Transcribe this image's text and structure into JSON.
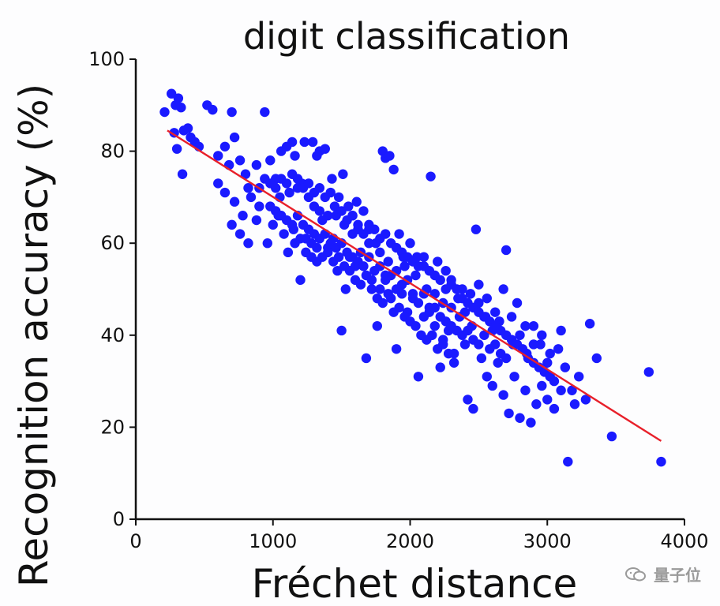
{
  "chart_data": {
    "type": "scatter",
    "title": "digit classification",
    "xlabel": "Fréchet distance",
    "ylabel": "Recognition accuracy (%)",
    "xlim": [
      0,
      4000
    ],
    "ylim": [
      0,
      100
    ],
    "x_ticks": [
      0,
      1000,
      2000,
      3000,
      4000
    ],
    "y_ticks": [
      0,
      20,
      40,
      60,
      80,
      100
    ],
    "grid": false,
    "colors": {
      "points": "#1a1aff",
      "fit_line": "#e8202a",
      "axes": "#111111"
    },
    "series": [
      {
        "type": "scatter",
        "points": [
          [
            210,
            88.5
          ],
          [
            260,
            92.5
          ],
          [
            290,
            90
          ],
          [
            310,
            91.5
          ],
          [
            330,
            89.5
          ],
          [
            350,
            84.5
          ],
          [
            280,
            84
          ],
          [
            300,
            80.5
          ],
          [
            340,
            75
          ],
          [
            380,
            85
          ],
          [
            400,
            83
          ],
          [
            430,
            82
          ],
          [
            460,
            81
          ],
          [
            520,
            90
          ],
          [
            560,
            89
          ],
          [
            600,
            79
          ],
          [
            650,
            81
          ],
          [
            680,
            77
          ],
          [
            700,
            88.5
          ],
          [
            720,
            83
          ],
          [
            760,
            78
          ],
          [
            800,
            75
          ],
          [
            820,
            72
          ],
          [
            880,
            77
          ],
          [
            940,
            88.5
          ],
          [
            980,
            78
          ],
          [
            1020,
            74
          ],
          [
            1060,
            80
          ],
          [
            1100,
            81
          ],
          [
            1140,
            82
          ],
          [
            1160,
            79
          ],
          [
            1210,
            73
          ],
          [
            1230,
            82
          ],
          [
            1290,
            82
          ],
          [
            1320,
            79
          ],
          [
            1340,
            80
          ],
          [
            1380,
            80.5
          ],
          [
            1430,
            74
          ],
          [
            1480,
            70
          ],
          [
            1510,
            75
          ],
          [
            1550,
            68
          ],
          [
            1580,
            62
          ],
          [
            1610,
            69
          ],
          [
            1660,
            67
          ],
          [
            1700,
            63
          ],
          [
            1750,
            60
          ],
          [
            1800,
            80
          ],
          [
            1820,
            78.5
          ],
          [
            1850,
            79
          ],
          [
            1880,
            76
          ],
          [
            1920,
            62
          ],
          [
            1950,
            57
          ],
          [
            2000,
            60
          ],
          [
            2050,
            57
          ],
          [
            2100,
            55
          ],
          [
            2150,
            74.5
          ],
          [
            2200,
            56
          ],
          [
            2260,
            50
          ],
          [
            2300,
            52
          ],
          [
            2350,
            48
          ],
          [
            2400,
            45
          ],
          [
            2450,
            42
          ],
          [
            2480,
            63
          ],
          [
            2500,
            47
          ],
          [
            2550,
            44
          ],
          [
            2600,
            41
          ],
          [
            2650,
            43
          ],
          [
            2700,
            58.5
          ],
          [
            2750,
            38
          ],
          [
            2800,
            40
          ],
          [
            2850,
            36
          ],
          [
            2900,
            42
          ],
          [
            2950,
            38
          ],
          [
            3000,
            34
          ],
          [
            3050,
            30
          ],
          [
            3100,
            41
          ],
          [
            3130,
            33
          ],
          [
            3150,
            12.5
          ],
          [
            3180,
            28
          ],
          [
            3230,
            31
          ],
          [
            3280,
            26
          ],
          [
            3310,
            42.5
          ],
          [
            3360,
            35
          ],
          [
            3470,
            18
          ],
          [
            3740,
            32
          ],
          [
            3830,
            12.5
          ],
          [
            600,
            73
          ],
          [
            650,
            71
          ],
          [
            720,
            69
          ],
          [
            780,
            66
          ],
          [
            840,
            70
          ],
          [
            900,
            68
          ],
          [
            960,
            60
          ],
          [
            1000,
            64
          ],
          [
            1040,
            66
          ],
          [
            1080,
            62
          ],
          [
            1110,
            58
          ],
          [
            1150,
            63
          ],
          [
            1200,
            52
          ],
          [
            1240,
            61
          ],
          [
            1280,
            57
          ],
          [
            1320,
            56
          ],
          [
            1360,
            65
          ],
          [
            1400,
            59
          ],
          [
            1440,
            61
          ],
          [
            1470,
            54
          ],
          [
            1500,
            41
          ],
          [
            1530,
            50
          ],
          [
            1560,
            57
          ],
          [
            1600,
            55
          ],
          [
            1640,
            58
          ],
          [
            1680,
            35
          ],
          [
            1720,
            52
          ],
          [
            1760,
            42
          ],
          [
            1780,
            50
          ],
          [
            1820,
            53
          ],
          [
            1860,
            48
          ],
          [
            1900,
            37
          ],
          [
            1940,
            51
          ],
          [
            1980,
            45
          ],
          [
            2020,
            49
          ],
          [
            2060,
            31
          ],
          [
            2100,
            44
          ],
          [
            2140,
            46
          ],
          [
            2180,
            42
          ],
          [
            2220,
            33
          ],
          [
            2240,
            39
          ],
          [
            2280,
            41
          ],
          [
            2320,
            36
          ],
          [
            2360,
            44
          ],
          [
            2400,
            38
          ],
          [
            2420,
            26
          ],
          [
            2460,
            24
          ],
          [
            2520,
            35
          ],
          [
            2560,
            31
          ],
          [
            2600,
            29
          ],
          [
            2640,
            34
          ],
          [
            2680,
            27
          ],
          [
            2720,
            23
          ],
          [
            2760,
            31
          ],
          [
            2800,
            22
          ],
          [
            2840,
            28
          ],
          [
            2880,
            21
          ],
          [
            2920,
            25
          ],
          [
            2960,
            29
          ],
          [
            3000,
            26
          ],
          [
            3050,
            24
          ],
          [
            3100,
            28
          ],
          [
            3200,
            25
          ],
          [
            700,
            64
          ],
          [
            760,
            62
          ],
          [
            820,
            60
          ],
          [
            880,
            65
          ],
          [
            1050,
            70
          ],
          [
            1120,
            71
          ],
          [
            1180,
            72
          ],
          [
            1260,
            70
          ],
          [
            1300,
            68
          ],
          [
            1340,
            67
          ],
          [
            1400,
            66
          ],
          [
            1450,
            68
          ],
          [
            1520,
            64
          ],
          [
            1580,
            66
          ],
          [
            1620,
            63
          ],
          [
            1700,
            60
          ],
          [
            1780,
            58
          ],
          [
            1840,
            56
          ],
          [
            1900,
            54
          ],
          [
            1960,
            55
          ],
          [
            2040,
            53
          ],
          [
            2120,
            50
          ],
          [
            2180,
            49
          ],
          [
            2240,
            47
          ],
          [
            2300,
            46
          ],
          [
            2380,
            50
          ],
          [
            2440,
            49
          ],
          [
            2500,
            51
          ],
          [
            2560,
            48
          ],
          [
            2620,
            45
          ],
          [
            2680,
            50
          ],
          [
            2740,
            44
          ],
          [
            2780,
            47
          ],
          [
            2840,
            42
          ],
          [
            2900,
            38
          ],
          [
            2960,
            40
          ],
          [
            3020,
            36
          ],
          [
            3080,
            37
          ],
          [
            980,
            68
          ],
          [
            1020,
            67
          ],
          [
            1060,
            66
          ],
          [
            1100,
            65
          ],
          [
            1140,
            64
          ],
          [
            1180,
            66
          ],
          [
            1220,
            64
          ],
          [
            1260,
            63
          ],
          [
            1300,
            62
          ],
          [
            1340,
            61
          ],
          [
            1380,
            62
          ],
          [
            1420,
            60
          ],
          [
            1460,
            59
          ],
          [
            1500,
            60
          ],
          [
            1540,
            58
          ],
          [
            1580,
            57
          ],
          [
            1620,
            56
          ],
          [
            1660,
            55
          ],
          [
            1700,
            57
          ],
          [
            1740,
            54
          ],
          [
            1780,
            55
          ],
          [
            1820,
            52
          ],
          [
            1860,
            53
          ],
          [
            1900,
            50
          ],
          [
            1940,
            49
          ],
          [
            1980,
            52
          ],
          [
            2020,
            48
          ],
          [
            2060,
            47
          ],
          [
            2100,
            49
          ],
          [
            2140,
            45
          ],
          [
            2180,
            46
          ],
          [
            2220,
            44
          ],
          [
            2260,
            43
          ],
          [
            2300,
            42
          ],
          [
            2340,
            41
          ],
          [
            2380,
            40
          ],
          [
            2420,
            41
          ],
          [
            2460,
            39
          ],
          [
            2500,
            38
          ],
          [
            2540,
            40
          ],
          [
            2580,
            37
          ],
          [
            2620,
            38
          ],
          [
            2660,
            36
          ],
          [
            2700,
            35
          ],
          [
            1160,
            60
          ],
          [
            1200,
            61
          ],
          [
            1240,
            58
          ],
          [
            1280,
            60
          ],
          [
            1320,
            59
          ],
          [
            1360,
            57
          ],
          [
            1400,
            58
          ],
          [
            1440,
            56
          ],
          [
            1480,
            57
          ],
          [
            1520,
            55
          ],
          [
            1560,
            54
          ],
          [
            1600,
            52
          ],
          [
            1640,
            51
          ],
          [
            1680,
            53
          ],
          [
            1720,
            50
          ],
          [
            1760,
            48
          ],
          [
            1800,
            47
          ],
          [
            1840,
            49
          ],
          [
            1880,
            45
          ],
          [
            1920,
            46
          ],
          [
            1960,
            44
          ],
          [
            2000,
            43
          ],
          [
            2040,
            42
          ],
          [
            2080,
            40
          ],
          [
            2120,
            39
          ],
          [
            2160,
            40
          ],
          [
            2200,
            37
          ],
          [
            2240,
            38
          ],
          [
            2280,
            36
          ],
          [
            2320,
            34
          ],
          [
            900,
            72
          ],
          [
            940,
            74
          ],
          [
            980,
            73
          ],
          [
            1020,
            72
          ],
          [
            1060,
            74
          ],
          [
            1100,
            73
          ],
          [
            1140,
            75
          ],
          [
            1180,
            74
          ],
          [
            1220,
            72
          ],
          [
            1260,
            73
          ],
          [
            1300,
            71
          ],
          [
            1340,
            72
          ],
          [
            1380,
            70
          ],
          [
            1420,
            71
          ],
          [
            1460,
            66
          ],
          [
            1500,
            67
          ],
          [
            1540,
            65
          ],
          [
            1580,
            66
          ],
          [
            1620,
            64
          ],
          [
            1660,
            62
          ],
          [
            1700,
            64
          ],
          [
            1740,
            63
          ],
          [
            1780,
            61
          ],
          [
            1820,
            62
          ],
          [
            1860,
            60
          ],
          [
            1900,
            59
          ],
          [
            1940,
            58
          ],
          [
            1980,
            57
          ],
          [
            2020,
            56
          ],
          [
            2060,
            55
          ],
          [
            2100,
            57
          ],
          [
            2140,
            54
          ],
          [
            2180,
            53
          ],
          [
            2220,
            52
          ],
          [
            2260,
            54
          ],
          [
            2300,
            51
          ],
          [
            2340,
            50
          ],
          [
            2380,
            48
          ],
          [
            2420,
            47
          ],
          [
            2460,
            46
          ],
          [
            2500,
            45
          ],
          [
            2540,
            44
          ],
          [
            2580,
            43
          ],
          [
            2620,
            42
          ],
          [
            2660,
            41
          ],
          [
            2700,
            40
          ],
          [
            2740,
            39
          ],
          [
            2780,
            38
          ],
          [
            2820,
            37
          ],
          [
            2860,
            35
          ],
          [
            2900,
            34
          ],
          [
            2940,
            33
          ],
          [
            2980,
            32
          ],
          [
            3020,
            31
          ]
        ]
      },
      {
        "type": "line",
        "points": [
          [
            230,
            84.5
          ],
          [
            3830,
            17
          ]
        ]
      }
    ]
  },
  "watermark": {
    "text": "量子位"
  }
}
